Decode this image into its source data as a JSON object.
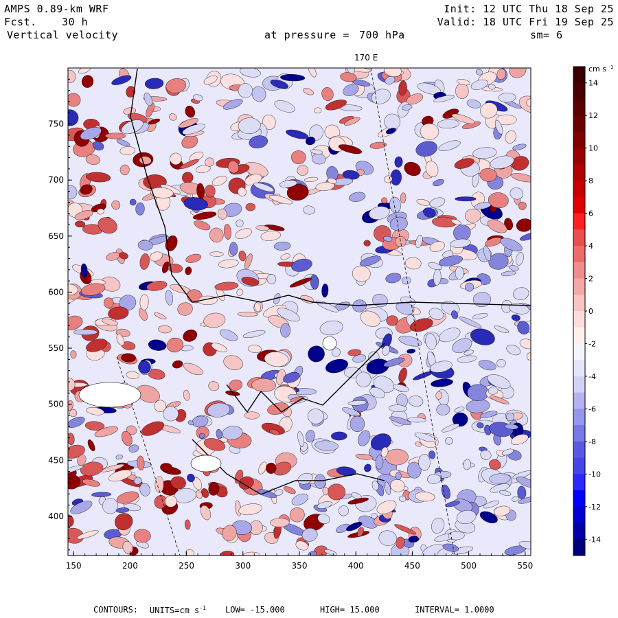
{
  "header": {
    "model": "AMPS 0.89-km WRF",
    "forecast_label": "Fcst.",
    "forecast_value": "30 h",
    "variable": "Vertical velocity",
    "init": "Init: 12 UTC Thu 18 Sep 25",
    "valid": "Valid: 18 UTC Fri 19 Sep 25",
    "pressure_label": "at pressure =",
    "pressure_value": "700 hPa",
    "smoothing": "sm= 6",
    "meridian_label": "170 E"
  },
  "footer": {
    "contours": "CONTOURS:",
    "units_label": "UNITS=cm s",
    "units_exp": "-1",
    "low": "LOW= -15.000",
    "high": "HIGH= 15.000",
    "interval": "INTERVAL= 1.0000"
  },
  "colorbar": {
    "units": "cm s",
    "units_exp": "-1",
    "labels": [
      "14",
      "12",
      "10",
      "8",
      "6",
      "4",
      "2",
      "0",
      "-2",
      "-4",
      "-6",
      "-8",
      "-10",
      "-12",
      "-14"
    ],
    "colors": [
      "#00007a",
      "#0000a8",
      "#0000d0",
      "#0000ff",
      "#2a2aff",
      "#4646e8",
      "#5a5ae0",
      "#7878e6",
      "#9696ec",
      "#b4b4f2",
      "#d2d2f8",
      "#e6e6fc",
      "#f4f4fe",
      "#fff0f0",
      "#fcdcdc",
      "#f8c4c4",
      "#f4a8a8",
      "#f08c8c",
      "#ec6c6c",
      "#e85050",
      "#ff2020",
      "#e00000",
      "#c80000",
      "#b00000",
      "#980000",
      "#800000",
      "#6a0000",
      "#580000",
      "#480000",
      "#3a0000"
    ]
  },
  "chart_data": {
    "type": "heatmap",
    "title": "Vertical velocity",
    "xlabel": "",
    "ylabel": "",
    "xlim": [
      145,
      555
    ],
    "ylim": [
      365,
      800
    ],
    "x_ticks": [
      150,
      200,
      250,
      300,
      350,
      400,
      450,
      500,
      550
    ],
    "y_ticks": [
      400,
      450,
      500,
      550,
      600,
      650,
      700,
      750
    ],
    "value_range": [
      -15,
      15
    ],
    "contour_interval": 1.0,
    "units": "cm s-1"
  }
}
